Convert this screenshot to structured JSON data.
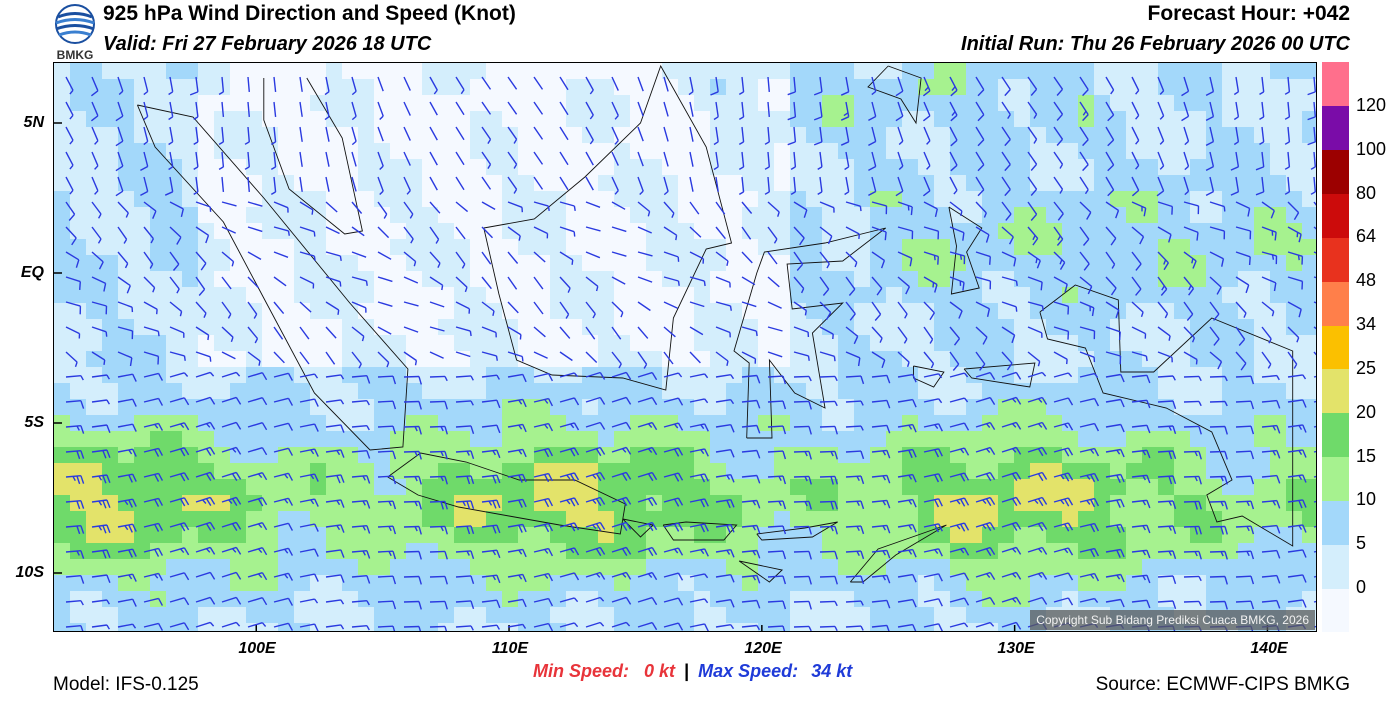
{
  "header": {
    "title": "925 hPa Wind Direction and Speed (Knot)",
    "valid": "Valid: Fri 27 February 2026 18 UTC",
    "forecast_hour": "Forecast Hour: +042",
    "initial_run": "Initial Run: Thu 26 February 2026 00 UTC",
    "logo_text": "BMKG"
  },
  "map": {
    "copyright": "Copyright Sub Bidang Prediksi Cuaca BMKG, 2026",
    "lat_labels": [
      "5N",
      "EQ",
      "5S",
      "10S"
    ],
    "lon_labels": [
      "100E",
      "110E",
      "120E",
      "130E",
      "140E"
    ],
    "extent": {
      "lon_min": 92,
      "lon_max": 142,
      "lat_min": -12,
      "lat_max": 7
    },
    "barb_color": "#2a3ae0",
    "coast_color": "#111111"
  },
  "speeds": {
    "min_label": "Min Speed:",
    "min_value": "0 kt",
    "separator": "|",
    "max_label": "Max Speed:",
    "max_value": "34 kt"
  },
  "footer": {
    "model": "Model: IFS-0.125",
    "source": "Source: ECMWF-CIPS BMKG"
  },
  "colorbar": {
    "labels": [
      "0",
      "5",
      "10",
      "15",
      "20",
      "25",
      "34",
      "48",
      "64",
      "80",
      "100",
      "120"
    ],
    "colors": [
      "#f5f9ff",
      "#d4eefc",
      "#a3d8fa",
      "#a6f28f",
      "#6fda6a",
      "#e3e36a",
      "#fbc000",
      "#ff7f4a",
      "#e8321e",
      "#cc0b0b",
      "#9c0000",
      "#7a0ca8",
      "#ff6f8c"
    ]
  }
}
